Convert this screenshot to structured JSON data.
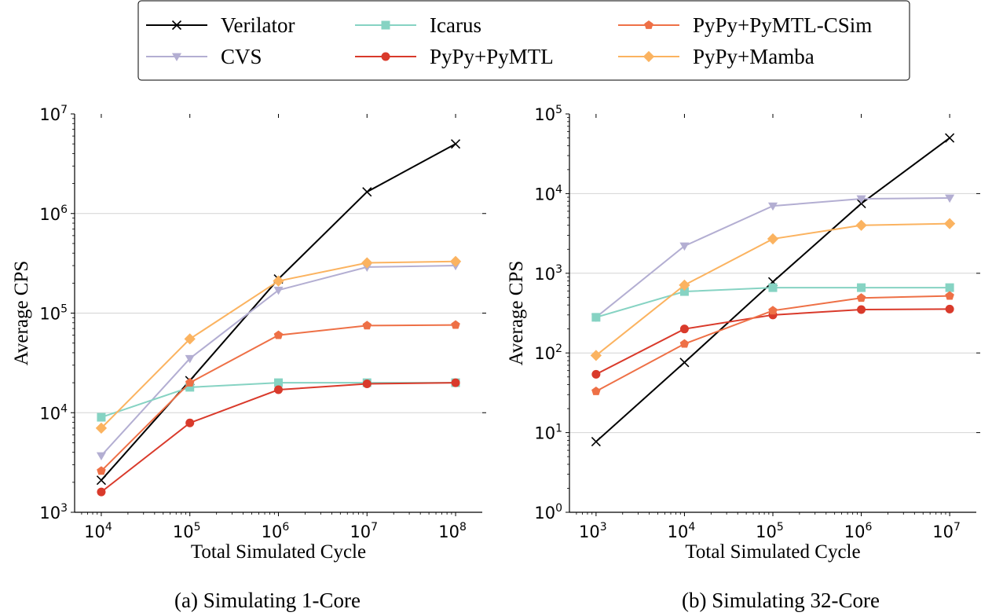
{
  "legend": {
    "entries": [
      {
        "name": "Verilator",
        "color": "#000000",
        "marker": "x"
      },
      {
        "name": "CVS",
        "color": "#b3aed2",
        "marker": "triangle-down"
      },
      {
        "name": "Icarus",
        "color": "#86d3c3",
        "marker": "square"
      },
      {
        "name": "PyPy+PyMTL",
        "color": "#d93a2b",
        "marker": "circle"
      },
      {
        "name": "PyPy+PyMTL-CSim",
        "color": "#ee7046",
        "marker": "pentagon"
      },
      {
        "name": "PyPy+Mamba",
        "color": "#fbb360",
        "marker": "diamond"
      }
    ],
    "placement": "top-center"
  },
  "chart_data": [
    {
      "type": "line",
      "caption": "(a) Simulating 1-Core",
      "xlabel": "Total Simulated Cycle",
      "ylabel": "Average CPS",
      "xscale": "log",
      "yscale": "log",
      "x": [
        10000,
        100000,
        1000000,
        10000000,
        100000000
      ],
      "xlim": [
        5000,
        200000000
      ],
      "ylim": [
        1000,
        10000000
      ],
      "xticks": [
        10000,
        100000,
        1000000,
        10000000,
        100000000
      ],
      "xtick_labels": [
        {
          "b": "10",
          "e": "4"
        },
        {
          "b": "10",
          "e": "5"
        },
        {
          "b": "10",
          "e": "6"
        },
        {
          "b": "10",
          "e": "7"
        },
        {
          "b": "10",
          "e": "8"
        }
      ],
      "yticks": [
        1000,
        10000,
        100000,
        1000000,
        10000000
      ],
      "ytick_labels": [
        {
          "b": "10",
          "e": "3"
        },
        {
          "b": "10",
          "e": "4"
        },
        {
          "b": "10",
          "e": "5"
        },
        {
          "b": "10",
          "e": "6"
        },
        {
          "b": "10",
          "e": "7"
        }
      ],
      "grid": "horizontal",
      "series": [
        {
          "name": "Verilator",
          "values": [
            2100,
            21000,
            220000,
            1650000,
            5000000
          ]
        },
        {
          "name": "CVS",
          "values": [
            3700,
            35000,
            170000,
            290000,
            300000
          ]
        },
        {
          "name": "Icarus",
          "values": [
            9000,
            18000,
            20000,
            20000,
            20000
          ]
        },
        {
          "name": "PyPy+PyMTL",
          "values": [
            1600,
            7900,
            17000,
            19500,
            20000
          ]
        },
        {
          "name": "PyPy+PyMTL-CSim",
          "values": [
            2600,
            20000,
            60000,
            75000,
            76000
          ]
        },
        {
          "name": "PyPy+Mamba",
          "values": [
            7000,
            55000,
            210000,
            320000,
            330000
          ]
        }
      ]
    },
    {
      "type": "line",
      "caption": "(b) Simulating 32-Core",
      "xlabel": "Total Simulated Cycle",
      "ylabel": "Average CPS",
      "xscale": "log",
      "yscale": "log",
      "x": [
        1000,
        10000,
        100000,
        1000000,
        10000000
      ],
      "xlim": [
        500,
        20000000
      ],
      "ylim": [
        1,
        100000
      ],
      "xticks": [
        1000,
        10000,
        100000,
        1000000,
        10000000
      ],
      "xtick_labels": [
        {
          "b": "10",
          "e": "3"
        },
        {
          "b": "10",
          "e": "4"
        },
        {
          "b": "10",
          "e": "5"
        },
        {
          "b": "10",
          "e": "6"
        },
        {
          "b": "10",
          "e": "7"
        }
      ],
      "yticks": [
        1,
        10,
        100,
        1000,
        10000,
        100000
      ],
      "ytick_labels": [
        {
          "b": "10",
          "e": "0"
        },
        {
          "b": "10",
          "e": "1"
        },
        {
          "b": "10",
          "e": "2"
        },
        {
          "b": "10",
          "e": "3"
        },
        {
          "b": "10",
          "e": "4"
        },
        {
          "b": "10",
          "e": "5"
        }
      ],
      "grid": "horizontal",
      "series": [
        {
          "name": "Verilator",
          "values": [
            7.7,
            76,
            780,
            7500,
            50000
          ]
        },
        {
          "name": "CVS",
          "values": [
            280,
            2200,
            7000,
            8600,
            8800
          ]
        },
        {
          "name": "Icarus",
          "values": [
            280,
            590,
            660,
            660,
            660
          ]
        },
        {
          "name": "PyPy+PyMTL",
          "values": [
            54,
            200,
            300,
            350,
            355
          ]
        },
        {
          "name": "PyPy+PyMTL-CSim",
          "values": [
            33,
            130,
            340,
            490,
            520
          ]
        },
        {
          "name": "PyPy+Mamba",
          "values": [
            93,
            710,
            2700,
            4000,
            4200
          ]
        }
      ]
    }
  ]
}
